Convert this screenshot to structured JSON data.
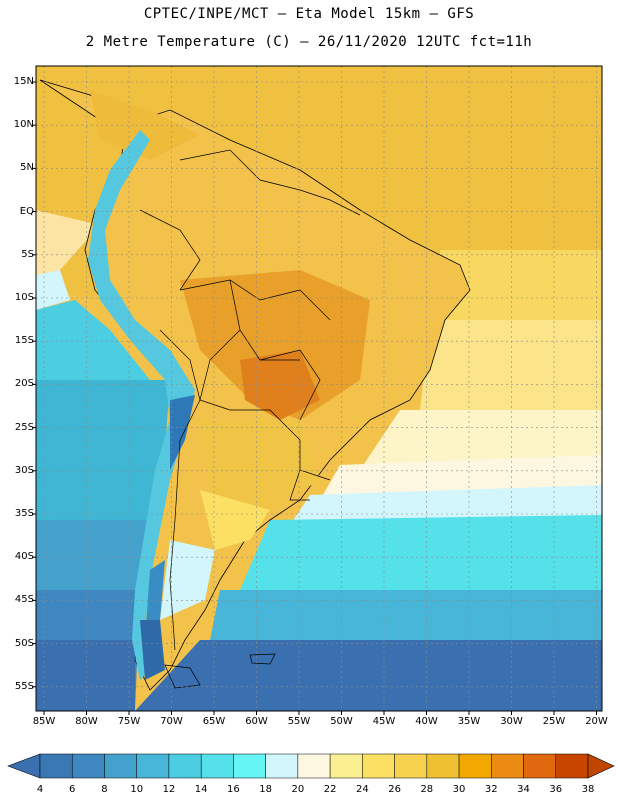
{
  "title_line1": "CPTEC/INPE/MCT  –   Eta Model 15km  –  GFS",
  "title_line2": "2 Metre Temperature (C) – 26/11/2020 12UTC fct=11h",
  "lat_labels": [
    "15N",
    "10N",
    "5N",
    "EQ",
    "5S",
    "10S",
    "15S",
    "20S",
    "25S",
    "30S",
    "35S",
    "40S",
    "45S",
    "50S",
    "55S"
  ],
  "lon_labels": [
    "85W",
    "80W",
    "75W",
    "70W",
    "65W",
    "60W",
    "55W",
    "50W",
    "45W",
    "40W",
    "35W",
    "30W",
    "25W",
    "20W"
  ],
  "colorbar": {
    "labels": [
      "4",
      "6",
      "8",
      "10",
      "12",
      "14",
      "16",
      "18",
      "20",
      "22",
      "24",
      "26",
      "28",
      "30",
      "32",
      "34",
      "36",
      "38"
    ],
    "colors": [
      "#3a78b4",
      "#3f87c0",
      "#44a1cc",
      "#48b6d8",
      "#4ccde1",
      "#55e1ea",
      "#66f5f5",
      "#d2f6fb",
      "#fdf7e2",
      "#fbf091",
      "#fbe063",
      "#f6d24e",
      "#efc132",
      "#f2a800",
      "#eb8b12",
      "#e0680f",
      "#c84500"
    ],
    "under_color": "#3a70b0",
    "over_color": "#c04600"
  }
}
